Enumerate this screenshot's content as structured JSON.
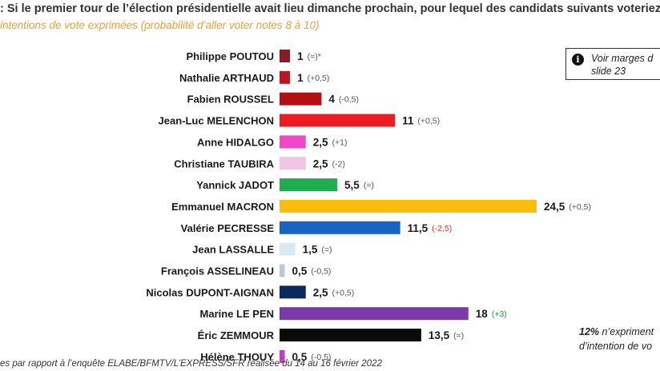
{
  "header": {
    "question": ": Si le premier tour de l’élection présidentielle avait lieu dimanche prochain, pour lequel des candidats suivants voteriez-",
    "subtitle": "intentions de vote exprimées (probabilité d’aller voter notes 8 à 10)"
  },
  "note": {
    "icon": "info-icon",
    "line1": "Voir marges d",
    "line2": "slide 23"
  },
  "side_note": {
    "pct": "12%",
    "line1": " n’expriment",
    "line2": "d’intention de vo"
  },
  "footer": "es par rapport à l’enquête ELABE/BFMTV/L’EXPRESS/SFR réalisée du 14 au 16 février 2022",
  "chart_data": {
    "type": "bar",
    "orientation": "horizontal",
    "title": "",
    "xlabel": "",
    "ylabel": "",
    "xlim": [
      0,
      25
    ],
    "grid": false,
    "categories": [
      "Philippe POUTOU",
      "Nathalie ARTHAUD",
      "Fabien ROUSSEL",
      "Jean-Luc MELENCHON",
      "Anne HIDALGO",
      "Christiane TAUBIRA",
      "Yannick JADOT",
      "Emmanuel MACRON",
      "Valérie PECRESSE",
      "Jean LASSALLE",
      "François ASSELINEAU",
      "Nicolas DUPONT-AIGNAN",
      "Marine LE PEN",
      "Éric ZEMMOUR",
      "Hélène THOUY"
    ],
    "values": [
      1,
      1,
      4,
      11,
      2.5,
      2.5,
      5.5,
      24.5,
      11.5,
      1.5,
      0.5,
      2.5,
      18,
      13.5,
      0.5
    ],
    "value_labels": [
      "1",
      "1",
      "4",
      "11",
      "2,5",
      "2,5",
      "5,5",
      "24,5",
      "11,5",
      "1,5",
      "0,5",
      "2,5",
      "18",
      "13,5",
      "0,5"
    ],
    "changes": [
      "(=)*",
      "(+0,5)",
      "(-0,5)",
      "(+0,5)",
      "(+1)",
      "(-2)",
      "(=)",
      "(+0,5)",
      "(-2,5)",
      "(=)",
      "(-0,5)",
      "(+0,5)",
      "(+3)",
      "(=)",
      "(-0,5)"
    ],
    "change_colors": [
      "#555555",
      "#555555",
      "#555555",
      "#555555",
      "#555555",
      "#555555",
      "#555555",
      "#555555",
      "#e0302a",
      "#555555",
      "#555555",
      "#555555",
      "#1a9e3a",
      "#555555",
      "#555555"
    ],
    "bar_colors": [
      "#8b1a2b",
      "#c0141e",
      "#b50f14",
      "#ee1c22",
      "#f048c8",
      "#f2c4e4",
      "#1fae4f",
      "#fbbd0a",
      "#1565c0",
      "#d6eaf6",
      "#b8c9d8",
      "#0b2a5c",
      "#7a3aa8",
      "#0a0a0a",
      "#c43dc4"
    ]
  }
}
